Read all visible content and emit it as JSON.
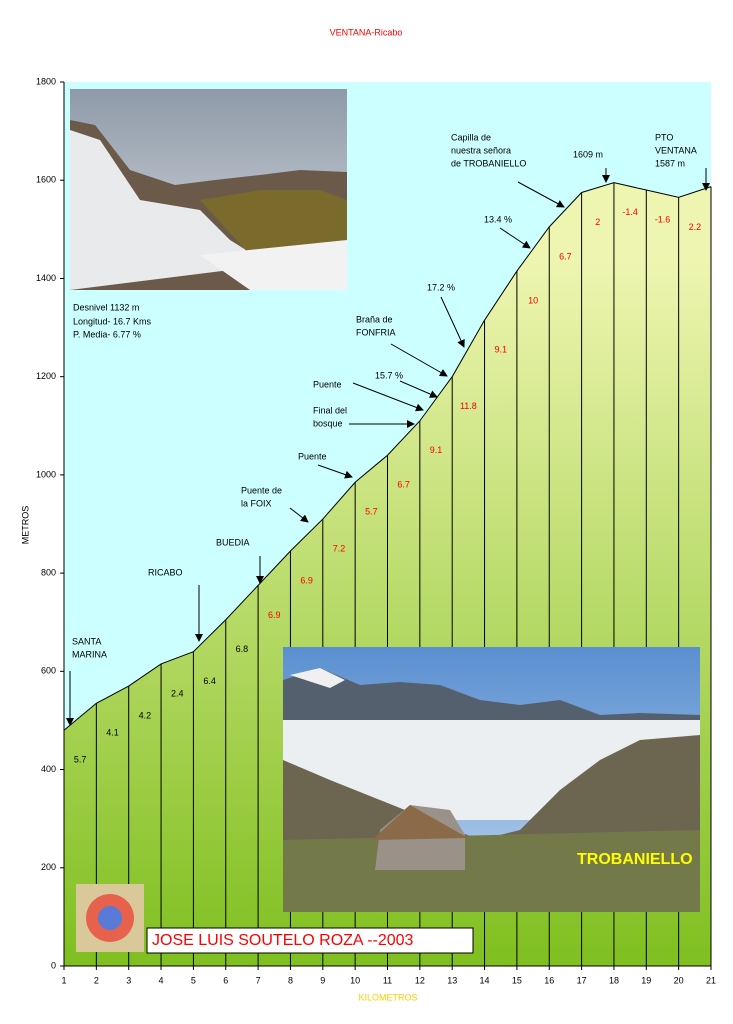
{
  "chart_data": {
    "type": "area",
    "title": "VENTANA-Ricabo",
    "x_label": "KILOMETROS",
    "y_label": "METROS",
    "x": [
      1,
      2,
      3,
      4,
      5,
      6,
      7,
      8,
      9,
      10,
      11,
      12,
      13,
      14,
      15,
      16,
      17,
      18,
      19,
      20,
      21
    ],
    "values": [
      480,
      535,
      570,
      615,
      640,
      705,
      775,
      845,
      910,
      985,
      1040,
      1110,
      1200,
      1315,
      1415,
      1505,
      1575,
      1595,
      1580,
      1565,
      1587
    ],
    "xlim": [
      1,
      21
    ],
    "ylim": [
      0,
      1800
    ],
    "xticks": [
      1,
      2,
      3,
      4,
      5,
      6,
      7,
      8,
      9,
      10,
      11,
      12,
      13,
      14,
      15,
      16,
      17,
      18,
      19,
      20,
      21
    ],
    "yticks": [
      0,
      200,
      400,
      600,
      800,
      1000,
      1200,
      1400,
      1600,
      1800
    ],
    "segment_labels": [
      5.7,
      4.1,
      4.2,
      2.4,
      6.4,
      6.8,
      6.9,
      6.9,
      7.2,
      5.7,
      6.7,
      9.1,
      11.8,
      9.1,
      10,
      6.7,
      2,
      -1.4,
      -1.6,
      2.2
    ],
    "segment_label_colors": [
      "#000000",
      "#000000",
      "#000000",
      "#000000",
      "#000000",
      "#000000",
      "#ff0000",
      "#ff0000",
      "#ff0000",
      "#ff0000",
      "#ff0000",
      "#ff0000",
      "#ff0000",
      "#ff0000",
      "#ff0000",
      "#ff0000",
      "#ff0000",
      "#ff0000",
      "#ff0000",
      "#ff0000"
    ],
    "background_color": "#ccffff",
    "fill_top_color": "#eef5b0",
    "fill_bottom_color": "#7fbf1f",
    "annotations": [
      {
        "lines": [
          "SANTA",
          "MARINA"
        ]
      },
      {
        "lines": [
          "RICABO"
        ]
      },
      {
        "lines": [
          "BUEDIA"
        ]
      },
      {
        "lines": [
          "Puente de",
          "la FOIX"
        ]
      },
      {
        "lines": [
          "Puente"
        ]
      },
      {
        "lines": [
          "Final del",
          "bosque"
        ]
      },
      {
        "lines": [
          "Puente"
        ]
      },
      {
        "lines": [
          "15.7 %"
        ]
      },
      {
        "lines": [
          "Braña de",
          "FONFRIA"
        ]
      },
      {
        "lines": [
          "17.2 %"
        ]
      },
      {
        "lines": [
          "13.4 %"
        ]
      },
      {
        "lines": [
          "Capilla de",
          "nuestra señora",
          "de TROBANIELLO"
        ]
      },
      {
        "lines": [
          "1609 m"
        ]
      },
      {
        "lines": [
          "PTO",
          "VENTANA",
          "1587 m"
        ]
      }
    ]
  },
  "info": [
    "Desnivel 1132 m",
    "Longitud- 16.7 Kms",
    "P. Media- 6.77 %"
  ],
  "author": "JOSE LUIS SOUTELO ROZA --2003",
  "photo_caption": "TROBANIELLO"
}
